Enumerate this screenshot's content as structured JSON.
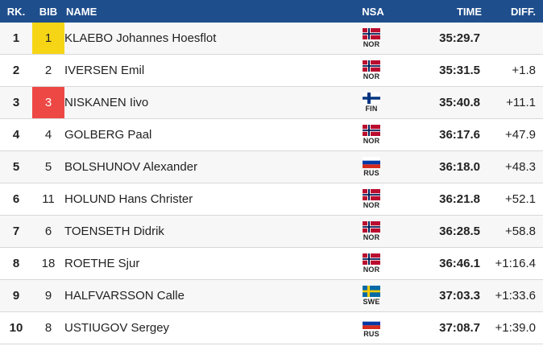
{
  "header": {
    "rank": "RK.",
    "bib": "BIB",
    "name": "NAME",
    "nsa": "NSA",
    "time": "TIME",
    "diff": "DIFF."
  },
  "colors": {
    "header_bg": "#1e4e8c",
    "bib_yellow": "#f5d516",
    "bib_red": "#ee4844"
  },
  "rows": [
    {
      "rank": "1",
      "bib": "1",
      "bib_style": "yellow",
      "name": "KLAEBO Johannes Hoesflot",
      "nsa": "NOR",
      "flag": "norway-flag-icon",
      "time": "35:29.7",
      "diff": ""
    },
    {
      "rank": "2",
      "bib": "2",
      "bib_style": "none",
      "name": "IVERSEN Emil",
      "nsa": "NOR",
      "flag": "norway-flag-icon",
      "time": "35:31.5",
      "diff": "+1.8"
    },
    {
      "rank": "3",
      "bib": "3",
      "bib_style": "red",
      "name": "NISKANEN Iivo",
      "nsa": "FIN",
      "flag": "finland-flag-icon",
      "time": "35:40.8",
      "diff": "+11.1"
    },
    {
      "rank": "4",
      "bib": "4",
      "bib_style": "none",
      "name": "GOLBERG Paal",
      "nsa": "NOR",
      "flag": "norway-flag-icon",
      "time": "36:17.6",
      "diff": "+47.9"
    },
    {
      "rank": "5",
      "bib": "5",
      "bib_style": "none",
      "name": "BOLSHUNOV Alexander",
      "nsa": "RUS",
      "flag": "russia-flag-icon",
      "time": "36:18.0",
      "diff": "+48.3"
    },
    {
      "rank": "6",
      "bib": "11",
      "bib_style": "none",
      "name": "HOLUND Hans Christer",
      "nsa": "NOR",
      "flag": "norway-flag-icon",
      "time": "36:21.8",
      "diff": "+52.1"
    },
    {
      "rank": "7",
      "bib": "6",
      "bib_style": "none",
      "name": "TOENSETH Didrik",
      "nsa": "NOR",
      "flag": "norway-flag-icon",
      "time": "36:28.5",
      "diff": "+58.8"
    },
    {
      "rank": "8",
      "bib": "18",
      "bib_style": "none",
      "name": "ROETHE Sjur",
      "nsa": "NOR",
      "flag": "norway-flag-icon",
      "time": "36:46.1",
      "diff": "+1:16.4"
    },
    {
      "rank": "9",
      "bib": "9",
      "bib_style": "none",
      "name": "HALFVARSSON Calle",
      "nsa": "SWE",
      "flag": "sweden-flag-icon",
      "time": "37:03.3",
      "diff": "+1:33.6"
    },
    {
      "rank": "10",
      "bib": "8",
      "bib_style": "none",
      "name": "USTIUGOV Sergey",
      "nsa": "RUS",
      "flag": "russia-flag-icon",
      "time": "37:08.7",
      "diff": "+1:39.0"
    }
  ]
}
